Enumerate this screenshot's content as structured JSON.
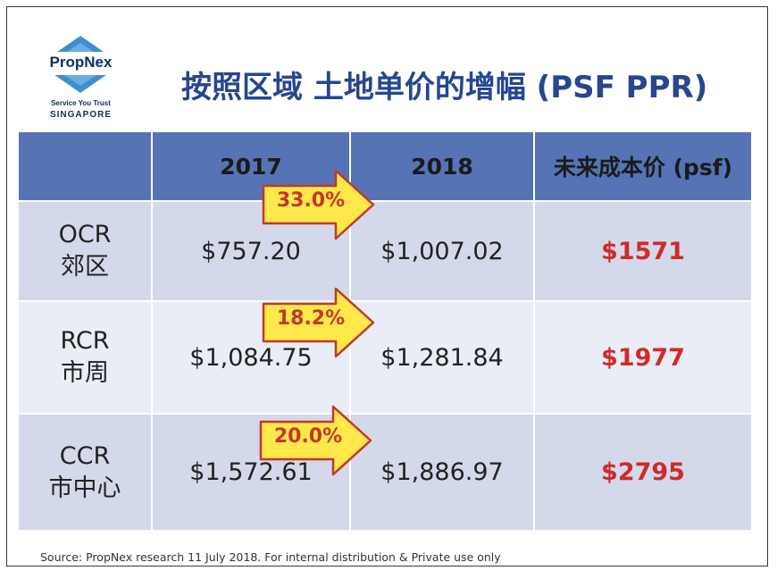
{
  "logo": {
    "name": "PropNex",
    "tagline": "Service You Trust",
    "country": "SINGAPORE",
    "colors": {
      "diamond": "#3d8fd0",
      "text": "#0f2f63"
    }
  },
  "title": "按照区域 土地单价的增幅 (PSF PPR)",
  "table": {
    "headers": [
      "",
      "2017",
      "2018",
      "未来成本价 (psf)"
    ],
    "rows": [
      {
        "region": "OCR",
        "region_cn": "郊区",
        "v2017": "$757.20",
        "v2018": "$1,007.02",
        "growth": "33.0%",
        "future_cost": "$1571"
      },
      {
        "region": "RCR",
        "region_cn": "市周",
        "v2017": "$1,084.75",
        "v2018": "$1,281.84",
        "growth": "18.2%",
        "future_cost": "$1977"
      },
      {
        "region": "CCR",
        "region_cn": "市中心",
        "v2017": "$1,572.61",
        "v2018": "$1,886.97",
        "growth": "20.0%",
        "future_cost": "$2795"
      }
    ]
  },
  "source": "Source: PropNex research 11 July 2018. For internal distribution & Private use only",
  "colors": {
    "header_bg": "#5674b5",
    "row_dark": "#d3d9ea",
    "row_light": "#eaedf5",
    "title": "#27468f",
    "cost": "#d02a2a",
    "arrow_fill": "#ffe84a",
    "arrow_stroke": "#c0392b"
  }
}
